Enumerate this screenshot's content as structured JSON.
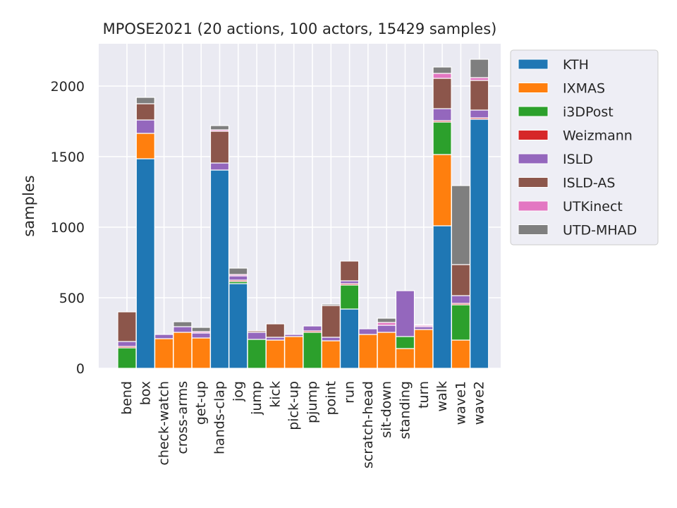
{
  "chart_data": {
    "type": "bar",
    "stacked": true,
    "title": "MPOSE2021 (20 actions, 100 actors, 15429 samples)",
    "xlabel": "",
    "ylabel": "samples",
    "ylim": [
      0,
      2300
    ],
    "yticks": [
      0,
      500,
      1000,
      1500,
      2000
    ],
    "grid": true,
    "legend_position": "upper-right-outside",
    "categories": [
      "bend",
      "box",
      "check-watch",
      "cross-arms",
      "get-up",
      "hands-clap",
      "jog",
      "jump",
      "kick",
      "pick-up",
      "pjump",
      "point",
      "run",
      "scratch-head",
      "sit-down",
      "standing",
      "turn",
      "walk",
      "wave1",
      "wave2"
    ],
    "series": [
      {
        "name": "KTH",
        "color": "#1f77b4",
        "values": [
          0,
          1485,
          0,
          0,
          0,
          1405,
          600,
          0,
          0,
          0,
          0,
          0,
          420,
          0,
          0,
          0,
          0,
          1010,
          0,
          1765
        ]
      },
      {
        "name": "IXMAS",
        "color": "#ff7f0e",
        "values": [
          0,
          180,
          210,
          255,
          215,
          0,
          0,
          0,
          200,
          225,
          0,
          195,
          0,
          240,
          255,
          140,
          275,
          505,
          200,
          0
        ]
      },
      {
        "name": "i3DPost",
        "color": "#2ca02c",
        "values": [
          145,
          0,
          0,
          0,
          0,
          0,
          15,
          205,
          0,
          0,
          255,
          0,
          170,
          0,
          0,
          85,
          0,
          230,
          250,
          0
        ]
      },
      {
        "name": "Weizmann",
        "color": "#d62728",
        "values": [
          10,
          0,
          0,
          0,
          0,
          0,
          10,
          0,
          0,
          0,
          10,
          0,
          10,
          0,
          0,
          0,
          0,
          10,
          10,
          10
        ]
      },
      {
        "name": "ISLD",
        "color": "#9467bd",
        "values": [
          35,
          95,
          30,
          40,
          35,
          50,
          30,
          50,
          20,
          15,
          35,
          25,
          20,
          40,
          50,
          325,
          20,
          85,
          55,
          55
        ]
      },
      {
        "name": "ISLD-AS",
        "color": "#8c564b",
        "values": [
          210,
          115,
          0,
          0,
          0,
          225,
          0,
          10,
          95,
          0,
          0,
          225,
          140,
          0,
          0,
          0,
          0,
          215,
          220,
          210
        ]
      },
      {
        "name": "UTKinect",
        "color": "#e377c2",
        "values": [
          0,
          0,
          0,
          0,
          10,
          10,
          10,
          0,
          0,
          0,
          0,
          0,
          0,
          0,
          20,
          0,
          10,
          35,
          0,
          20
        ]
      },
      {
        "name": "UTD-MHAD",
        "color": "#7f7f7f",
        "values": [
          0,
          45,
          0,
          35,
          30,
          30,
          45,
          0,
          0,
          0,
          0,
          10,
          0,
          0,
          30,
          0,
          5,
          45,
          560,
          130
        ]
      }
    ]
  }
}
